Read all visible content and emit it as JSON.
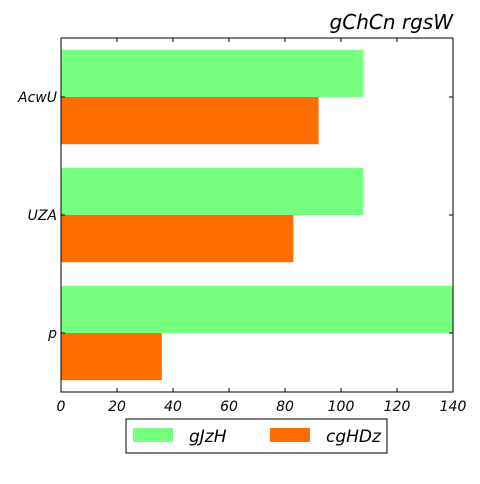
{
  "chart_data": {
    "type": "bar",
    "orientation": "horizontal",
    "title": "gChCn rgsW",
    "categories": [
      "AcwU",
      "UZA",
      "p"
    ],
    "series": [
      {
        "name": "gJzH",
        "values": [
          108,
          108,
          140
        ],
        "color": "#77ff7f"
      },
      {
        "name": "cgHDz",
        "values": [
          92,
          83,
          36
        ],
        "color": "#ff6c00"
      }
    ],
    "xlim": [
      0,
      140
    ],
    "xticks": [
      0,
      20,
      40,
      60,
      80,
      100,
      120,
      140
    ],
    "grid": false,
    "legend": {
      "position": "bottom"
    }
  }
}
